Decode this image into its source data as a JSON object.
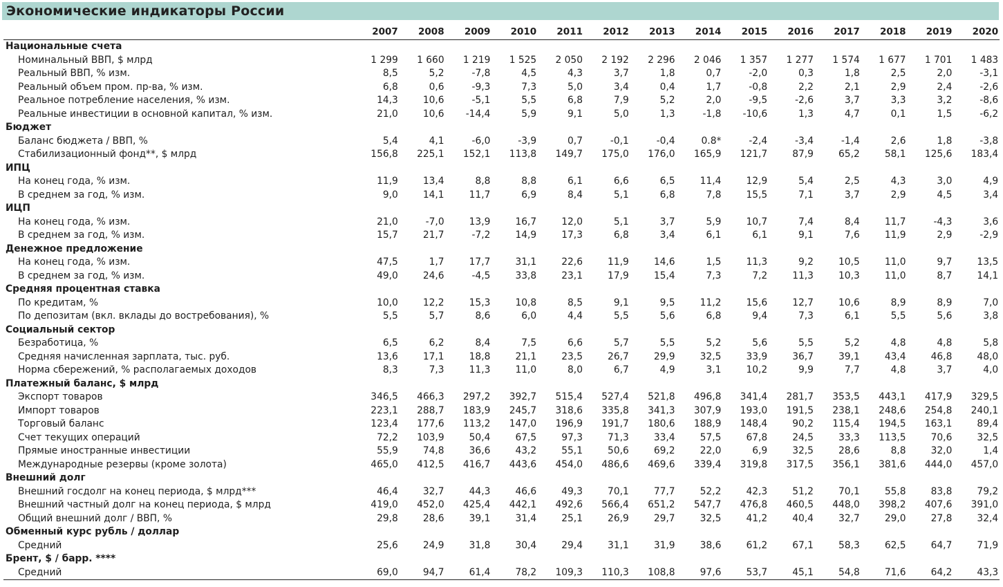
{
  "title": "Экономические индикаторы России",
  "years": [
    "2007",
    "2008",
    "2009",
    "2010",
    "2011",
    "2012",
    "2013",
    "2014",
    "2015",
    "2016",
    "2017",
    "2018",
    "2019",
    "2020"
  ],
  "sections": [
    {
      "title": "Национальные счета",
      "rows": [
        {
          "label": "Номинальный ВВП, $ млрд",
          "values": [
            "1 299",
            "1 660",
            "1 219",
            "1 525",
            "2 050",
            "2 192",
            "2 296",
            "2 046",
            "1 357",
            "1 277",
            "1 574",
            "1 677",
            "1 701",
            "1 483"
          ]
        },
        {
          "label": "Реальный ВВП, % изм.",
          "values": [
            "8,5",
            "5,2",
            "-7,8",
            "4,5",
            "4,3",
            "3,7",
            "1,8",
            "0,7",
            "-2,0",
            "0,3",
            "1,8",
            "2,5",
            "2,0",
            "-3,1"
          ]
        },
        {
          "label": "Реальный объем пром. пр-ва, % изм.",
          "values": [
            "6,8",
            "0,6",
            "-9,3",
            "7,3",
            "5,0",
            "3,4",
            "0,4",
            "1,7",
            "-0,8",
            "2,2",
            "2,1",
            "2,9",
            "2,4",
            "-2,6"
          ]
        },
        {
          "label": "Реальное потребление населения, % изм.",
          "values": [
            "14,3",
            "10,6",
            "-5,1",
            "5,5",
            "6,8",
            "7,9",
            "5,2",
            "2,0",
            "-9,5",
            "-2,6",
            "3,7",
            "3,3",
            "3,2",
            "-8,6"
          ]
        },
        {
          "label": "Реальные инвестиции в основной капитал, % изм.",
          "values": [
            "21,0",
            "10,6",
            "-14,4",
            "5,9",
            "9,1",
            "5,0",
            "1,3",
            "-1,8",
            "-10,6",
            "1,3",
            "4,7",
            "0,1",
            "1,5",
            "-6,2"
          ]
        }
      ]
    },
    {
      "title": "Бюджет",
      "rows": [
        {
          "label": "Баланс бюджета / ВВП, %",
          "values": [
            "5,4",
            "4,1",
            "-6,0",
            "-3,9",
            "0,7",
            "-0,1",
            "-0,4",
            "0.8*",
            "-2,4",
            "-3,4",
            "-1,4",
            "2,6",
            "1,8",
            "-3,8"
          ]
        },
        {
          "label": "Стабилизационный фонд**, $ млрд",
          "values": [
            "156,8",
            "225,1",
            "152,1",
            "113,8",
            "149,7",
            "175,0",
            "176,0",
            "165,9",
            "121,7",
            "87,9",
            "65,2",
            "58,1",
            "125,6",
            "183,4"
          ]
        }
      ]
    },
    {
      "title": "ИПЦ",
      "rows": [
        {
          "label": "На конец года, % изм.",
          "values": [
            "11,9",
            "13,4",
            "8,8",
            "8,8",
            "6,1",
            "6,6",
            "6,5",
            "11,4",
            "12,9",
            "5,4",
            "2,5",
            "4,3",
            "3,0",
            "4,9"
          ]
        },
        {
          "label": "В среднем за год, % изм.",
          "values": [
            "9,0",
            "14,1",
            "11,7",
            "6,9",
            "8,4",
            "5,1",
            "6,8",
            "7,8",
            "15,5",
            "7,1",
            "3,7",
            "2,9",
            "4,5",
            "3,4"
          ]
        }
      ]
    },
    {
      "title": "ИЦП",
      "rows": [
        {
          "label": "На конец года, % изм.",
          "values": [
            "21,0",
            "-7,0",
            "13,9",
            "16,7",
            "12,0",
            "5,1",
            "3,7",
            "5,9",
            "10,7",
            "7,4",
            "8,4",
            "11,7",
            "-4,3",
            "3,6"
          ]
        },
        {
          "label": "В среднем за год, % изм.",
          "values": [
            "15,7",
            "21,7",
            "-7,2",
            "14,9",
            "17,3",
            "6,8",
            "3,4",
            "6,1",
            "6,1",
            "9,1",
            "7,6",
            "11,9",
            "2,9",
            "-2,9"
          ]
        }
      ]
    },
    {
      "title": "Денежное предложение",
      "rows": [
        {
          "label": "На конец года, % изм.",
          "values": [
            "47,5",
            "1,7",
            "17,7",
            "31,1",
            "22,6",
            "11,9",
            "14,6",
            "1,5",
            "11,3",
            "9,2",
            "10,5",
            "11,0",
            "9,7",
            "13,5"
          ]
        },
        {
          "label": "В среднем за год, % изм.",
          "values": [
            "49,0",
            "24,6",
            "-4,5",
            "33,8",
            "23,1",
            "17,9",
            "15,4",
            "7,3",
            "7,2",
            "11,3",
            "10,3",
            "11,0",
            "8,7",
            "14,1"
          ]
        }
      ]
    },
    {
      "title": "Средняя процентная ставка",
      "rows": [
        {
          "label": "По кредитам, %",
          "values": [
            "10,0",
            "12,2",
            "15,3",
            "10,8",
            "8,5",
            "9,1",
            "9,5",
            "11,2",
            "15,6",
            "12,7",
            "10,6",
            "8,9",
            "8,9",
            "7,0"
          ]
        },
        {
          "label": "По депозитам (вкл. вклады до востребования), %",
          "values": [
            "5,5",
            "5,7",
            "8,6",
            "6,0",
            "4,4",
            "5,5",
            "5,6",
            "6,8",
            "9,4",
            "7,3",
            "6,1",
            "5,5",
            "5,6",
            "3,8"
          ]
        }
      ]
    },
    {
      "title": "Социальный сектор",
      "rows": [
        {
          "label": "Безработица, %",
          "values": [
            "6,5",
            "6,2",
            "8,4",
            "7,5",
            "6,6",
            "5,7",
            "5,5",
            "5,2",
            "5,6",
            "5,5",
            "5,2",
            "4,8",
            "4,8",
            "5,8"
          ]
        },
        {
          "label": "Средняя начисленная зарплата, тыс. руб.",
          "values": [
            "13,6",
            "17,1",
            "18,8",
            "21,1",
            "23,5",
            "26,7",
            "29,9",
            "32,5",
            "33,9",
            "36,7",
            "39,1",
            "43,4",
            "46,8",
            "48,0"
          ]
        },
        {
          "label": "Норма сбережений, % располагаемых доходов",
          "values": [
            "8,3",
            "7,3",
            "11,3",
            "11,0",
            "8,0",
            "6,7",
            "4,9",
            "3,1",
            "10,2",
            "9,9",
            "7,7",
            "4,8",
            "3,7",
            "4,0"
          ]
        }
      ]
    },
    {
      "title": "Платежный баланс, $ млрд",
      "rows": [
        {
          "label": "Экспорт товаров",
          "values": [
            "346,5",
            "466,3",
            "297,2",
            "392,7",
            "515,4",
            "527,4",
            "521,8",
            "496,8",
            "341,4",
            "281,7",
            "353,5",
            "443,1",
            "417,9",
            "329,5"
          ]
        },
        {
          "label": "Импорт товаров",
          "values": [
            "223,1",
            "288,7",
            "183,9",
            "245,7",
            "318,6",
            "335,8",
            "341,3",
            "307,9",
            "193,0",
            "191,5",
            "238,1",
            "248,6",
            "254,8",
            "240,1"
          ]
        },
        {
          "label": "Торговый баланс",
          "values": [
            "123,4",
            "177,6",
            "113,2",
            "147,0",
            "196,9",
            "191,7",
            "180,6",
            "188,9",
            "148,4",
            "90,2",
            "115,4",
            "194,5",
            "163,1",
            "89,4"
          ]
        },
        {
          "label": "Счет текущих операций",
          "values": [
            "72,2",
            "103,9",
            "50,4",
            "67,5",
            "97,3",
            "71,3",
            "33,4",
            "57,5",
            "67,8",
            "24,5",
            "33,3",
            "113,5",
            "70,6",
            "32,5"
          ]
        },
        {
          "label": "Прямые иностранные инвестиции",
          "values": [
            "55,9",
            "74,8",
            "36,6",
            "43,2",
            "55,1",
            "50,6",
            "69,2",
            "22,0",
            "6,9",
            "32,5",
            "28,6",
            "8,8",
            "32,0",
            "1,4"
          ]
        },
        {
          "label": "Международные резервы (кроме золота)",
          "values": [
            "465,0",
            "412,5",
            "416,7",
            "443,6",
            "454,0",
            "486,6",
            "469,6",
            "339,4",
            "319,8",
            "317,5",
            "356,1",
            "381,6",
            "444,0",
            "457,0"
          ]
        }
      ]
    },
    {
      "title": "Внешний долг",
      "rows": [
        {
          "label": "Внешний госдолг на конец периода, $ млрд***",
          "values": [
            "46,4",
            "32,7",
            "44,3",
            "46,6",
            "49,3",
            "70,1",
            "77,7",
            "52,2",
            "42,3",
            "51,2",
            "70,1",
            "55,8",
            "83,8",
            "79,2"
          ]
        },
        {
          "label": "Внешний частный долг на конец периода, $ млрд",
          "values": [
            "419,0",
            "452,0",
            "425,4",
            "442,1",
            "492,6",
            "566,4",
            "651,2",
            "547,7",
            "476,8",
            "460,5",
            "448,0",
            "398,2",
            "407,6",
            "391,0"
          ]
        },
        {
          "label": "Общий внешний долг / ВВП, %",
          "values": [
            "29,8",
            "28,6",
            "39,1",
            "31,4",
            "25,1",
            "26,9",
            "29,7",
            "32,5",
            "41,2",
            "40,4",
            "32,7",
            "29,0",
            "27,8",
            "32,4"
          ]
        }
      ]
    },
    {
      "title": "Обменный курс рубль / доллар",
      "rows": [
        {
          "label": "Средний",
          "values": [
            "25,6",
            "24,9",
            "31,8",
            "30,4",
            "29,4",
            "31,1",
            "31,9",
            "38,6",
            "61,2",
            "67,1",
            "58,3",
            "62,5",
            "64,7",
            "71,9"
          ]
        }
      ]
    },
    {
      "title": "Брент, $ / барр. ****",
      "rows": [
        {
          "label": "Средний",
          "values": [
            "69,0",
            "94,7",
            "61,4",
            "78,2",
            "109,3",
            "110,3",
            "108,8",
            "97,6",
            "53,7",
            "45,1",
            "54,8",
            "71,6",
            "64,2",
            "43,3"
          ]
        }
      ]
    }
  ]
}
